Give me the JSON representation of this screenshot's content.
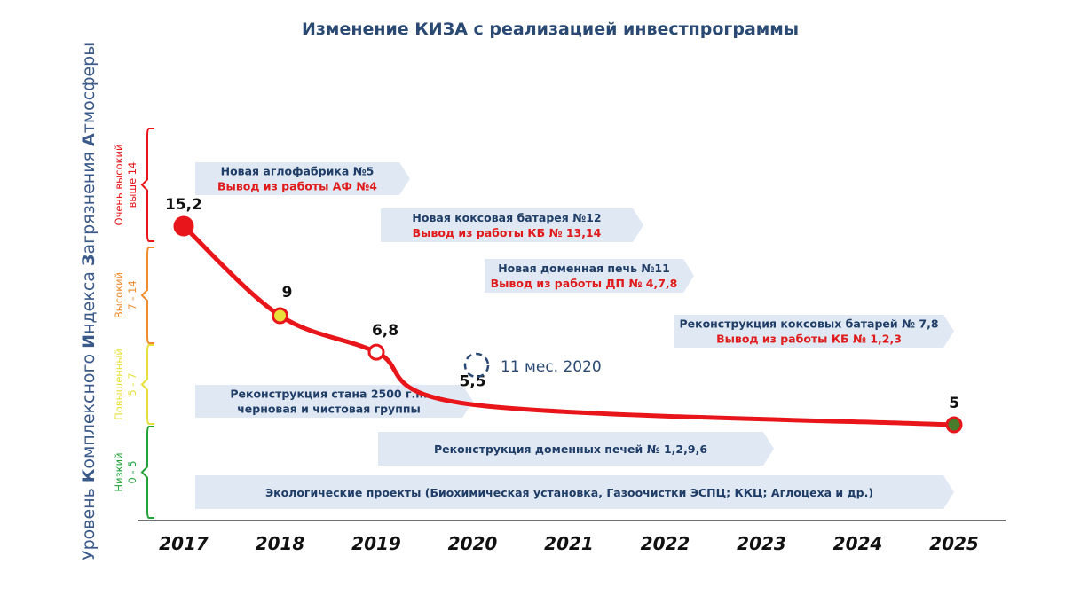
{
  "chart_data": {
    "type": "line",
    "title": "Изменение КИЗА с реализацией инвестпрограммы",
    "ylabel": {
      "prefix": "Уровень ",
      "parts": [
        {
          "big": "К",
          "rest": "омплексного "
        },
        {
          "big": "И",
          "rest": "ндекса "
        },
        {
          "big": "З",
          "rest": "агрязнения "
        },
        {
          "big": "А",
          "rest": "тмосферы"
        }
      ]
    },
    "x": [
      "2017",
      "2018",
      "2019",
      "2020",
      "2021",
      "2022",
      "2023",
      "2024",
      "2025"
    ],
    "points": [
      {
        "year": 2017,
        "value": 15.2,
        "label": "15,2",
        "color": "#e8161a"
      },
      {
        "year": 2018,
        "value": 9,
        "label": "9",
        "color": "#e8e03a"
      },
      {
        "year": 2019,
        "value": 6.8,
        "label": "6,8",
        "color": "#ffffff"
      },
      {
        "year": 2020,
        "value": 5.5,
        "label": "5,5",
        "color": "none"
      },
      {
        "year": 2025,
        "value": 5,
        "label": "5",
        "color": "#4a7a2c"
      }
    ],
    "annotation": "11 мес. 2020",
    "zones": [
      {
        "line1": "Очень высокий",
        "line2": "выше 14",
        "color": "#e8161a"
      },
      {
        "line1": "Высокий",
        "line2": "7 - 14",
        "color": "#ef8c2c"
      },
      {
        "line1": "Повышенный",
        "line2": "5 - 7",
        "color": "#e8e03a"
      },
      {
        "line1": "Низкий",
        "line2": "0 - 5",
        "color": "#22a33a"
      }
    ],
    "line_color": "#e8161a",
    "projects": [
      {
        "line1": "Новая аглофабрика №5",
        "line2": "Вывод из работы АФ №4"
      },
      {
        "line1": "Новая коксовая батарея №12",
        "line2": "Вывод из работы КБ № 13,14"
      },
      {
        "line1": "Новая доменная печь №11",
        "line2": "Вывод из работы ДП № 4,7,8"
      },
      {
        "line1": "Реконструкция коксовых батарей № 7,8",
        "line2": "Вывод из работы КБ № 1,2,3"
      },
      {
        "line1": "Реконструкция стана 2500 г.п.",
        "line2": "черновая и чистовая группы"
      },
      {
        "line1": "Реконструкция доменных печей № 1,2,9,6",
        "line2": ""
      },
      {
        "line1": "Экологические проекты (Биохимическая установка, Газоочистки ЭСПЦ; ККЦ; Аглоцеха и др.)",
        "line2": ""
      }
    ]
  }
}
